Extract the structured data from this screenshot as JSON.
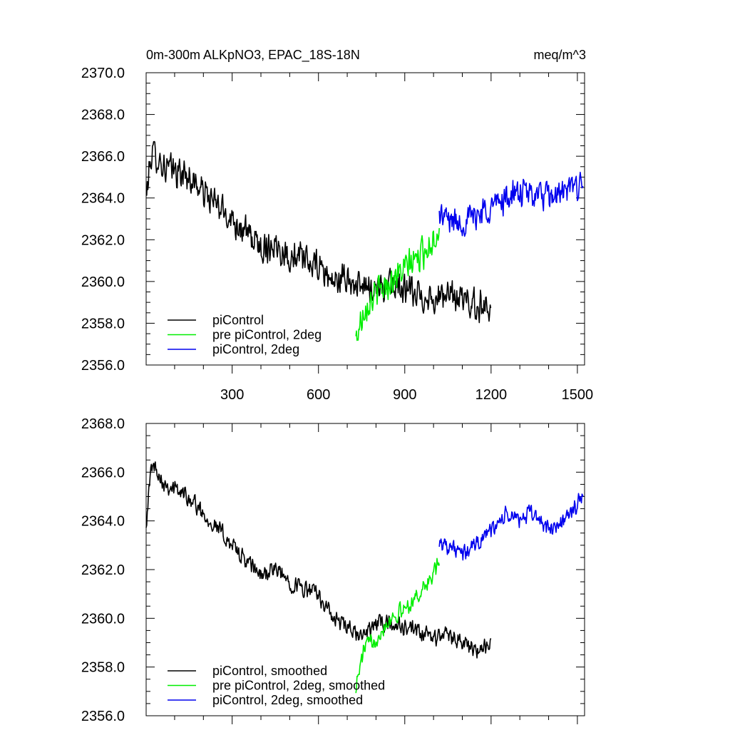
{
  "colors": {
    "piControl": "#000000",
    "pre_piControl_2deg": "#00ee00",
    "piControl_2deg": "#0000ee"
  },
  "chart_data": [
    {
      "type": "line",
      "title": "0m-300m ALKpNO3, EPAC_18S-18N",
      "units": "meq/m^3",
      "xlabel": "",
      "ylabel": "",
      "xlim": [
        1,
        1525
      ],
      "ylim": [
        2356.0,
        2370.0
      ],
      "x_ticks": [
        300,
        600,
        900,
        1200,
        1500
      ],
      "x_tick_labels": [
        "300",
        "600",
        "900",
        "1200",
        "1500"
      ],
      "y_ticks": [
        2356,
        2358,
        2360,
        2362,
        2364,
        2366,
        2368,
        2370
      ],
      "y_tick_labels": [
        "2356.0",
        "2358.0",
        "2360.0",
        "2362.0",
        "2364.0",
        "2366.0",
        "2368.0",
        "2370.0"
      ],
      "grid": false,
      "legend_position": "bottom-left",
      "series": [
        {
          "name": "piControl",
          "x_start": 1,
          "x_end": 1200,
          "anchors_x": [
            1,
            20,
            40,
            60,
            100,
            150,
            200,
            250,
            300,
            350,
            400,
            450,
            500,
            550,
            600,
            650,
            700,
            750,
            800,
            850,
            900,
            950,
            1000,
            1050,
            1100,
            1150,
            1200
          ],
          "anchors_y": [
            2364.0,
            2366.2,
            2366.0,
            2365.5,
            2365.3,
            2365.0,
            2364.3,
            2363.6,
            2363.0,
            2362.3,
            2361.6,
            2361.8,
            2361.2,
            2361.0,
            2360.7,
            2360.0,
            2360.1,
            2359.6,
            2359.8,
            2359.8,
            2359.6,
            2359.3,
            2359.2,
            2359.3,
            2359.2,
            2358.8,
            2358.9
          ],
          "noise": 0.9
        },
        {
          "name": "pre piControl, 2deg",
          "x_start": 730,
          "x_end": 1020,
          "anchors_x": [
            730,
            760,
            800,
            850,
            900,
            950,
            1000,
            1020
          ],
          "anchors_y": [
            2357.2,
            2358.8,
            2359.4,
            2360.0,
            2360.6,
            2361.2,
            2362.0,
            2362.6
          ],
          "noise": 0.9
        },
        {
          "name": "piControl, 2deg",
          "x_start": 1020,
          "x_end": 1520,
          "anchors_x": [
            1020,
            1050,
            1100,
            1150,
            1200,
            1250,
            1300,
            1350,
            1400,
            1450,
            1500,
            1520
          ],
          "anchors_y": [
            2363.2,
            2363.0,
            2362.8,
            2363.2,
            2363.6,
            2364.0,
            2364.2,
            2364.2,
            2364.0,
            2364.2,
            2364.6,
            2365.0
          ],
          "noise": 0.85
        }
      ]
    },
    {
      "type": "line",
      "title": "",
      "xlabel": "",
      "ylabel": "",
      "xlim": [
        1,
        1525
      ],
      "ylim": [
        2356.0,
        2368.0
      ],
      "x_ticks": [
        300,
        600,
        900,
        1200,
        1500
      ],
      "x_tick_labels": [],
      "y_ticks": [
        2356,
        2358,
        2360,
        2362,
        2364,
        2366,
        2368
      ],
      "y_tick_labels": [
        "2356.0",
        "2358.0",
        "2360.0",
        "2362.0",
        "2364.0",
        "2366.0",
        "2368.0"
      ],
      "grid": false,
      "legend_position": "bottom-left",
      "series": [
        {
          "name": "piControl, smoothed",
          "x_start": 1,
          "x_end": 1200,
          "anchors_x": [
            1,
            20,
            40,
            60,
            100,
            150,
            200,
            250,
            300,
            350,
            400,
            450,
            500,
            550,
            600,
            650,
            700,
            750,
            800,
            850,
            900,
            950,
            1000,
            1050,
            1100,
            1150,
            1200
          ],
          "anchors_y": [
            2364.0,
            2366.3,
            2366.1,
            2365.6,
            2365.3,
            2365.0,
            2364.3,
            2363.7,
            2363.0,
            2362.3,
            2361.8,
            2362.0,
            2361.5,
            2361.2,
            2361.0,
            2360.0,
            2359.6,
            2359.2,
            2359.8,
            2359.8,
            2359.6,
            2359.4,
            2359.2,
            2359.4,
            2359.0,
            2358.6,
            2358.9
          ],
          "noise": 0.45
        },
        {
          "name": "pre piControl, 2deg, smoothed",
          "x_start": 730,
          "x_end": 1020,
          "anchors_x": [
            730,
            760,
            800,
            850,
            900,
            950,
            1000,
            1020
          ],
          "anchors_y": [
            2357.2,
            2358.8,
            2359.2,
            2360.0,
            2360.4,
            2361.0,
            2361.8,
            2362.3
          ],
          "noise": 0.45
        },
        {
          "name": "piControl, 2deg, smoothed",
          "x_start": 1020,
          "x_end": 1520,
          "anchors_x": [
            1020,
            1050,
            1100,
            1150,
            1200,
            1250,
            1300,
            1350,
            1400,
            1450,
            1500,
            1520
          ],
          "anchors_y": [
            2363.2,
            2363.0,
            2362.6,
            2363.1,
            2363.6,
            2364.2,
            2364.1,
            2364.3,
            2363.6,
            2364.0,
            2364.6,
            2365.2
          ],
          "noise": 0.45
        }
      ]
    }
  ]
}
